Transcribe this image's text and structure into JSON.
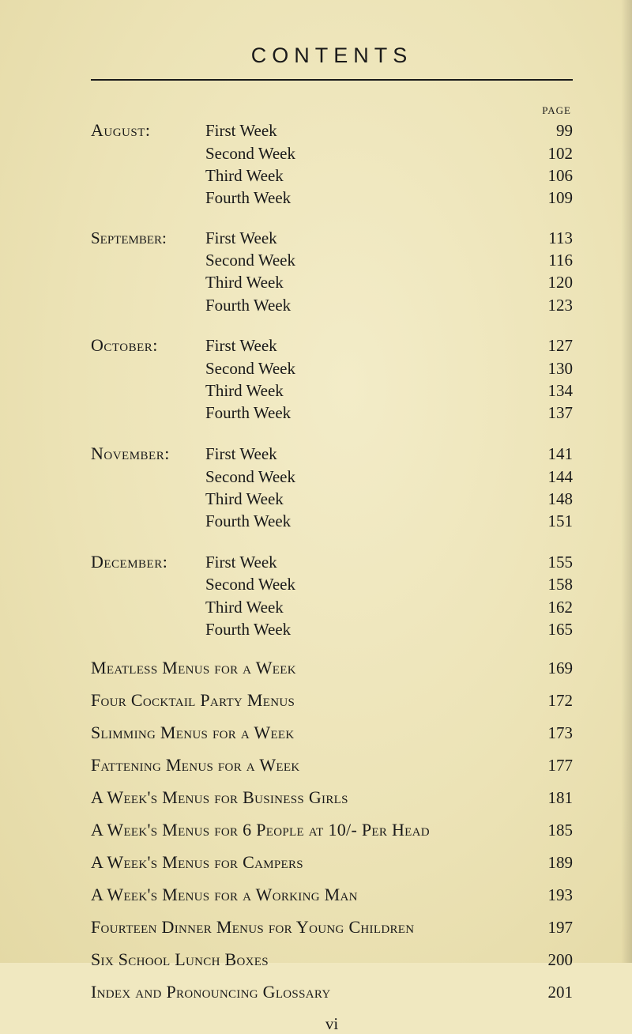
{
  "title": "CONTENTS",
  "page_header": "PAGE",
  "months": [
    {
      "name": "August:",
      "weeks": [
        {
          "label": "First Week",
          "page": "99"
        },
        {
          "label": "Second Week",
          "page": "102"
        },
        {
          "label": "Third Week",
          "page": "106"
        },
        {
          "label": "Fourth Week",
          "page": "109"
        }
      ]
    },
    {
      "name": "September:",
      "weeks": [
        {
          "label": "First Week",
          "page": "113"
        },
        {
          "label": "Second Week",
          "page": "116"
        },
        {
          "label": "Third Week",
          "page": "120"
        },
        {
          "label": "Fourth Week",
          "page": "123"
        }
      ]
    },
    {
      "name": "October:",
      "weeks": [
        {
          "label": "First Week",
          "page": "127"
        },
        {
          "label": "Second Week",
          "page": "130"
        },
        {
          "label": "Third Week",
          "page": "134"
        },
        {
          "label": "Fourth Week",
          "page": "137"
        }
      ]
    },
    {
      "name": "November:",
      "weeks": [
        {
          "label": "First Week",
          "page": "141"
        },
        {
          "label": "Second Week",
          "page": "144"
        },
        {
          "label": "Third Week",
          "page": "148"
        },
        {
          "label": "Fourth Week",
          "page": "151"
        }
      ]
    },
    {
      "name": "December:",
      "weeks": [
        {
          "label": "First Week",
          "page": "155"
        },
        {
          "label": "Second Week",
          "page": "158"
        },
        {
          "label": "Third Week",
          "page": "162"
        },
        {
          "label": "Fourth Week",
          "page": "165"
        }
      ]
    }
  ],
  "sections": [
    {
      "title": "Meatless Menus for a Week",
      "page": "169"
    },
    {
      "title": "Four Cocktail Party Menus",
      "page": "172"
    },
    {
      "title": "Slimming Menus for a Week",
      "page": "173"
    },
    {
      "title": "Fattening Menus for a Week",
      "page": "177"
    },
    {
      "title": "A Week's Menus for Business Girls",
      "page": "181"
    },
    {
      "title": "A Week's Menus for 6 People at 10/- Per Head",
      "page": "185"
    },
    {
      "title": "A Week's Menus for Campers",
      "page": "189"
    },
    {
      "title": "A Week's Menus for a Working Man",
      "page": "193"
    },
    {
      "title": "Fourteen Dinner Menus for Young Children",
      "page": "197"
    },
    {
      "title": "Six School Lunch Boxes",
      "page": "200"
    },
    {
      "title": "Index and Pronouncing Glossary",
      "page": "201"
    }
  ],
  "footer": "vi",
  "colors": {
    "text": "#1a1a1a",
    "background": "#f0e8c0"
  }
}
